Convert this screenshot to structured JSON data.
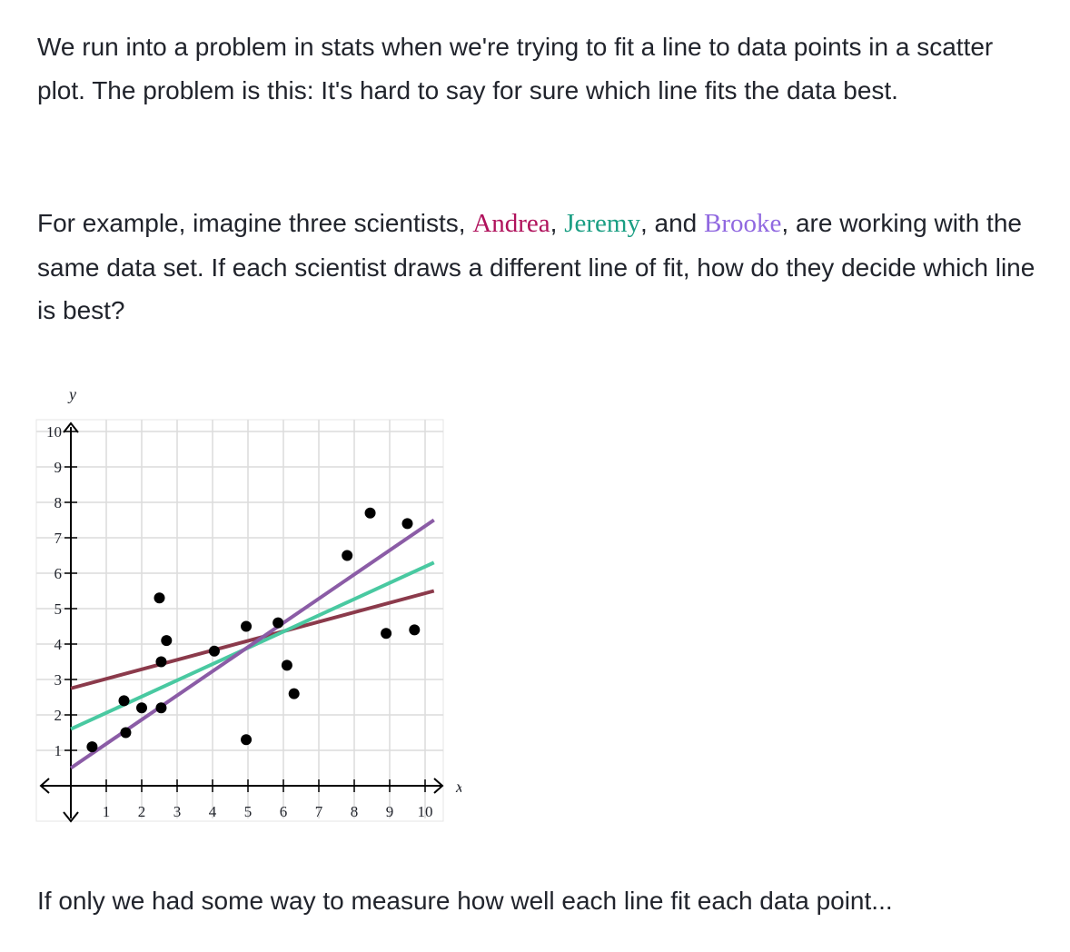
{
  "intro": {
    "text": "We run into a problem in stats when we're trying to fit a line to data points in a scatter plot. The problem is this: It's hard to say for sure which line fits the data best."
  },
  "example": {
    "before": "For example, imagine three scientists, ",
    "name1": "Andrea",
    "sep1": ", ",
    "name2": "Jeremy",
    "sep2": ", and ",
    "name3": "Brooke",
    "after": ", are working with the same data set. If each scientist draws a different line of fit, how do they decide which line is best?",
    "colors": {
      "andrea": "#b0125c",
      "jeremy": "#1a9e83",
      "brooke": "#9068e0"
    }
  },
  "closing": {
    "text": "If only we had some way to measure how well each line fit each data point..."
  },
  "chart_data": {
    "type": "scatter",
    "xlabel": "x",
    "ylabel": "y",
    "xlim": [
      0,
      10
    ],
    "ylim": [
      0,
      10
    ],
    "x_ticks": [
      "1",
      "2",
      "3",
      "4",
      "5",
      "6",
      "7",
      "8",
      "9",
      "10"
    ],
    "y_ticks": [
      "1",
      "2",
      "3",
      "4",
      "5",
      "6",
      "7",
      "8",
      "9",
      "10"
    ],
    "grid": true,
    "points": [
      {
        "x": 0.6,
        "y": 1.1
      },
      {
        "x": 1.5,
        "y": 2.4
      },
      {
        "x": 1.55,
        "y": 1.5
      },
      {
        "x": 2.0,
        "y": 2.2
      },
      {
        "x": 2.5,
        "y": 5.3
      },
      {
        "x": 2.55,
        "y": 3.5
      },
      {
        "x": 2.55,
        "y": 2.2
      },
      {
        "x": 2.7,
        "y": 4.1
      },
      {
        "x": 4.05,
        "y": 3.8
      },
      {
        "x": 4.95,
        "y": 4.5
      },
      {
        "x": 4.95,
        "y": 1.3
      },
      {
        "x": 5.85,
        "y": 4.6
      },
      {
        "x": 6.1,
        "y": 3.4
      },
      {
        "x": 6.3,
        "y": 2.6
      },
      {
        "x": 7.8,
        "y": 6.5
      },
      {
        "x": 8.45,
        "y": 7.7
      },
      {
        "x": 8.9,
        "y": 4.3
      },
      {
        "x": 9.5,
        "y": 7.4
      },
      {
        "x": 9.7,
        "y": 4.4
      }
    ],
    "lines": [
      {
        "color": "#8b3a4b",
        "x": [
          0,
          10.25
        ],
        "y": [
          2.75,
          5.5
        ]
      },
      {
        "color": "#49c9a1",
        "x": [
          0,
          10.25
        ],
        "y": [
          1.6,
          6.3
        ]
      },
      {
        "color": "#8b5ca6",
        "x": [
          0,
          10.25
        ],
        "y": [
          0.5,
          7.5
        ]
      }
    ]
  }
}
